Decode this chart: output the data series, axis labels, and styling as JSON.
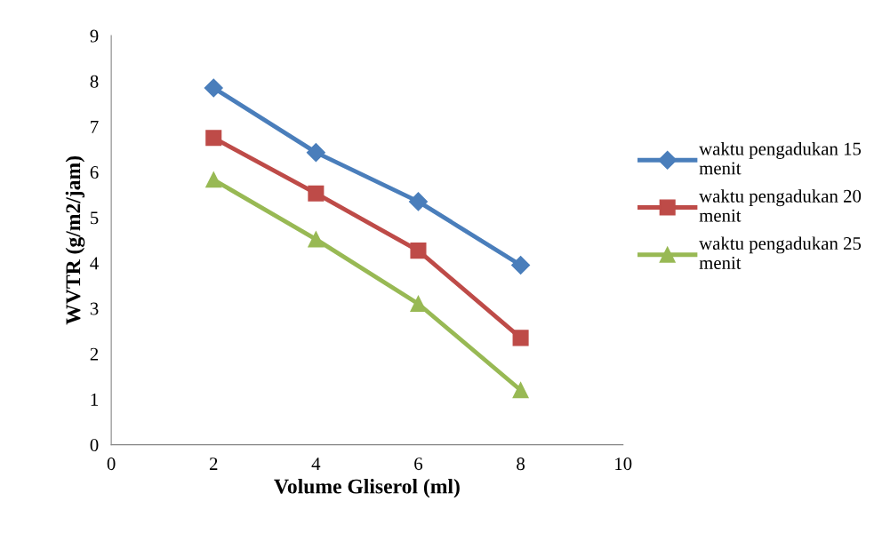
{
  "chart_data": {
    "type": "line",
    "xlabel": "Volume Gliserol (ml)",
    "ylabel": "WVTR (g/m2/jam)",
    "x": [
      2,
      4,
      6,
      8
    ],
    "series": [
      {
        "name": "waktu pengadukan 15 menit",
        "color": "#4a7ebb",
        "marker": "diamond",
        "values": [
          7.85,
          6.43,
          5.35,
          3.95
        ]
      },
      {
        "name": "waktu pengadukan 20 menit",
        "color": "#be4b48",
        "marker": "square",
        "values": [
          6.75,
          5.53,
          4.27,
          2.35
        ]
      },
      {
        "name": "waktu pengadukan 25 menit",
        "color": "#98b954",
        "marker": "triangle",
        "values": [
          5.83,
          4.52,
          3.1,
          1.2
        ]
      }
    ],
    "xlim": [
      0,
      10
    ],
    "xticks": [
      0,
      2,
      4,
      6,
      8,
      10
    ],
    "ylim": [
      0,
      9
    ],
    "yticks": [
      0,
      1,
      2,
      3,
      4,
      5,
      6,
      7,
      8,
      9
    ],
    "grid": false,
    "legend": "right",
    "line_style": "solid"
  }
}
